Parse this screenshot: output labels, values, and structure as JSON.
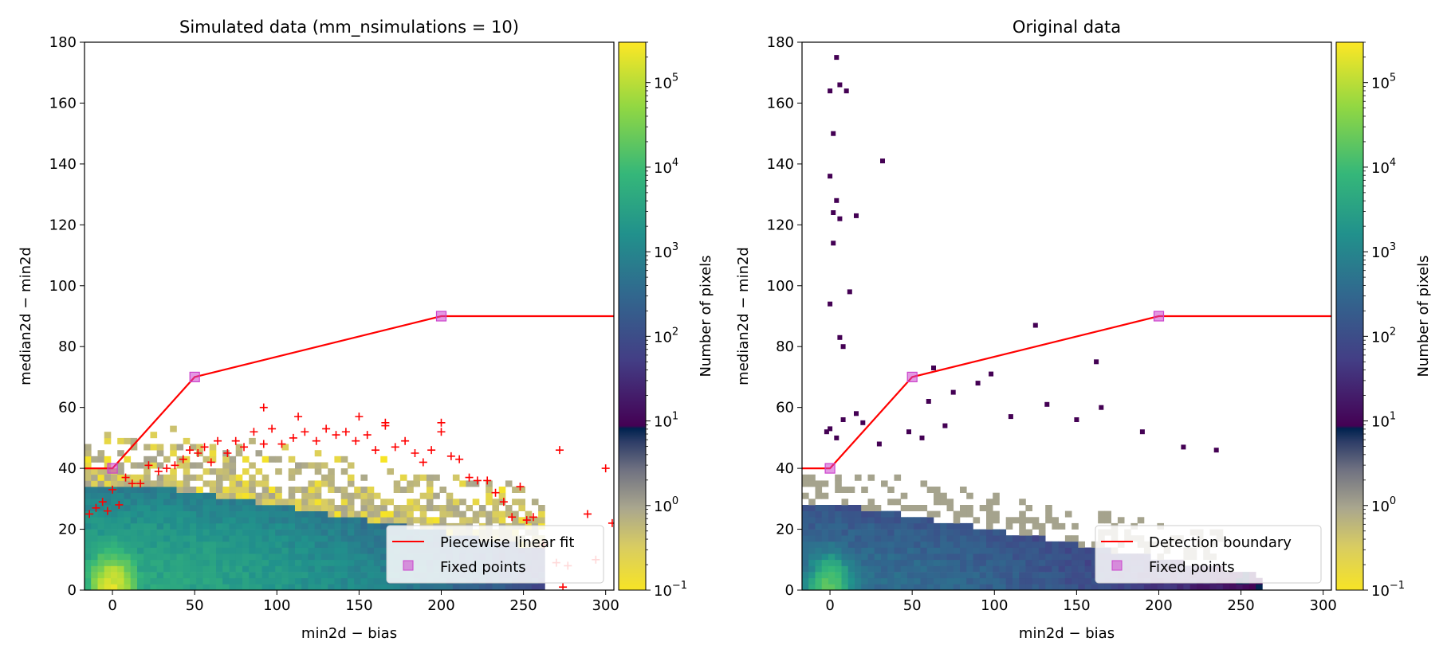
{
  "colorbar": {
    "label": "Number of pixels",
    "tick_labels": [
      "10",
      "10",
      "10",
      "10",
      "10",
      "10",
      "10"
    ],
    "tick_exponents": [
      "−1",
      "0",
      "1",
      "2",
      "3",
      "4",
      "5"
    ],
    "tick_values": [
      0.1,
      1,
      10,
      100,
      1000,
      10000,
      100000
    ],
    "range": [
      0.1,
      300000
    ],
    "scale": "log",
    "colormap": "viridis with cividis-like inset near 1"
  },
  "chart_data": [
    {
      "type": "heatmap",
      "title": "Simulated data (mm_nsimulations = 10)",
      "xlabel": "min2d − bias",
      "ylabel": "median2d − min2d",
      "xlim": [
        -17,
        305
      ],
      "ylim": [
        0,
        180
      ],
      "xticks": [
        0,
        50,
        100,
        150,
        200,
        250,
        300
      ],
      "yticks": [
        0,
        20,
        40,
        60,
        80,
        100,
        120,
        140,
        160,
        180
      ],
      "xtick_labels": [
        "0",
        "50",
        "100",
        "150",
        "200",
        "250",
        "300"
      ],
      "ytick_labels": [
        "0",
        "20",
        "40",
        "60",
        "80",
        "100",
        "120",
        "140",
        "160",
        "180"
      ],
      "density": {
        "center": [
          0,
          0
        ],
        "peak": 300000,
        "sx": 95,
        "sy": 18,
        "sharp_sx": 6,
        "sharp_sy": 5
      },
      "boundary": {
        "name": "Piecewise linear fit",
        "x": [
          -17,
          0,
          50,
          200,
          305
        ],
        "y": [
          40,
          40,
          70,
          90,
          90
        ],
        "color": "#ff0000"
      },
      "fixed_points": {
        "name": "Fixed points",
        "x": [
          0,
          50,
          200
        ],
        "y": [
          40,
          70,
          90
        ],
        "color": "#cc44cc"
      },
      "plus_points": {
        "x": [
          -14,
          -10,
          -6,
          -3,
          0,
          4,
          8,
          12,
          17,
          22,
          28,
          33,
          38,
          43,
          47,
          52,
          56,
          60,
          64,
          70,
          75,
          80,
          86,
          92,
          97,
          103,
          110,
          117,
          124,
          130,
          136,
          142,
          148,
          155,
          160,
          166,
          172,
          178,
          184,
          189,
          194,
          200,
          206,
          211,
          217,
          222,
          228,
          233,
          238,
          243,
          248,
          252,
          256,
          262,
          270,
          274,
          277,
          289,
          294,
          300,
          304,
          92,
          113,
          150,
          166,
          200,
          272
        ],
        "y": [
          25,
          27,
          29,
          26,
          33,
          28,
          37,
          35,
          35,
          41,
          39,
          40,
          41,
          43,
          46,
          45,
          47,
          42,
          49,
          45,
          49,
          47,
          52,
          48,
          53,
          48,
          50,
          52,
          49,
          53,
          51,
          52,
          49,
          51,
          46,
          54,
          47,
          49,
          45,
          42,
          46,
          52,
          44,
          43,
          37,
          36,
          36,
          32,
          29,
          24,
          34,
          23,
          24,
          15,
          9,
          1,
          8,
          25,
          10,
          40,
          22,
          60,
          57,
          57,
          55,
          55,
          46
        ],
        "color": "#ff0000"
      },
      "legend": {
        "location": "lower-right",
        "entries": [
          "Piecewise linear fit",
          "Fixed points"
        ]
      }
    },
    {
      "type": "heatmap",
      "title": "Original data",
      "xlabel": "min2d − bias",
      "ylabel": "median2d − min2d",
      "xlim": [
        -17,
        305
      ],
      "ylim": [
        0,
        180
      ],
      "xticks": [
        0,
        50,
        100,
        150,
        200,
        250,
        300
      ],
      "yticks": [
        0,
        20,
        40,
        60,
        80,
        100,
        120,
        140,
        160,
        180
      ],
      "xtick_labels": [
        "0",
        "50",
        "100",
        "150",
        "200",
        "250",
        "300"
      ],
      "ytick_labels": [
        "0",
        "20",
        "40",
        "60",
        "80",
        "100",
        "120",
        "140",
        "160",
        "180"
      ],
      "density": {
        "center": [
          0,
          0
        ],
        "peak": 30000,
        "sx": 95,
        "sy": 18,
        "sharp_sx": 6,
        "sharp_sy": 5
      },
      "outliers": {
        "x": [
          4,
          6,
          0,
          2,
          10,
          32,
          16,
          0,
          4,
          2,
          6,
          12,
          2,
          6,
          125,
          63,
          98,
          162,
          0,
          8,
          16,
          60,
          75,
          90,
          132,
          165,
          8,
          0,
          -2,
          4,
          20,
          30,
          48,
          56,
          70,
          110,
          150,
          190,
          215,
          235
        ],
        "y": [
          175,
          166,
          164,
          150,
          164,
          141,
          123,
          136,
          128,
          124,
          122,
          98,
          114,
          83,
          87,
          73,
          71,
          75,
          94,
          80,
          58,
          62,
          65,
          68,
          61,
          60,
          56,
          53,
          52,
          50,
          55,
          48,
          52,
          50,
          54,
          57,
          56,
          52,
          47,
          46
        ],
        "color": "#440154"
      },
      "boundary": {
        "name": "Detection boundary",
        "x": [
          -17,
          0,
          50,
          200,
          305
        ],
        "y": [
          40,
          40,
          70,
          90,
          90
        ],
        "color": "#ff0000"
      },
      "fixed_points": {
        "name": "Fixed points",
        "x": [
          0,
          50,
          200
        ],
        "y": [
          40,
          70,
          90
        ],
        "color": "#cc44cc"
      },
      "legend": {
        "location": "lower-right",
        "entries": [
          "Detection boundary",
          "Fixed points"
        ]
      }
    }
  ]
}
